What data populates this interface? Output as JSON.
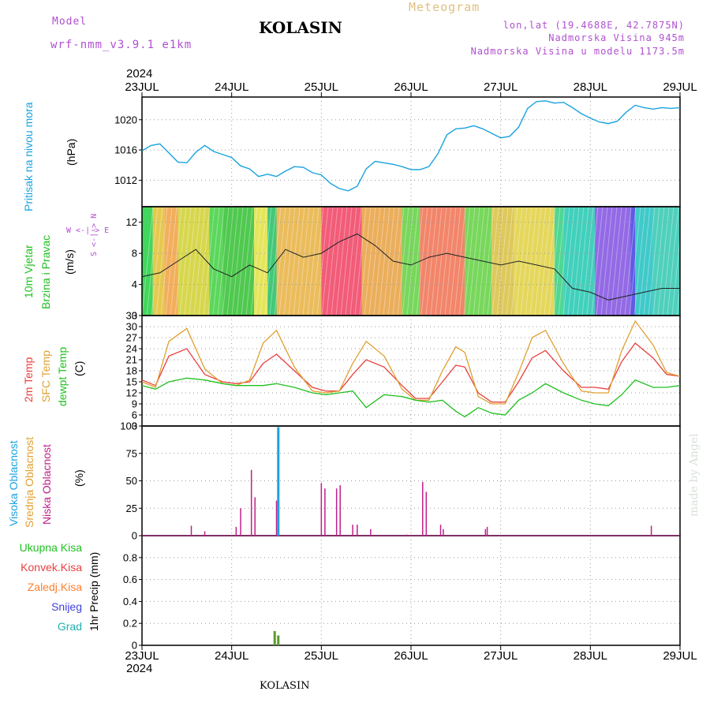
{
  "header": {
    "model_label": "Model",
    "model_name": "wrf-nmm_v3.9.1 e1km",
    "title": "KOLASIN",
    "meteogram": "Meteogram",
    "lonlat": "lon,lat (19.4688E, 42.7875N)",
    "altitude": "Nadmorska Visina 945m",
    "model_altitude": "Nadmorska Visina u modelu 1173.5m",
    "footer": "KOLASIN",
    "watermark": "made by Angel",
    "year_top": "2024",
    "year_bottom": "2024"
  },
  "colors": {
    "pressure": "#1aa3e0",
    "temp2m": "#e84040",
    "sfc_temp": "#e0a030",
    "dewpoint": "#20c020",
    "high_cloud": "#1aa3e0",
    "mid_cloud": "#e0a030",
    "low_cloud": "#c0208a",
    "precip_total": "#20c020",
    "precip_conv": "#e84040",
    "precip_frz": "#ff8030",
    "snow": "#4040e0",
    "hail": "#20b0b0",
    "model": "#b050d0",
    "meteogram": "#e0c080",
    "info": "#b050d0"
  },
  "panel_labels": {
    "pressure": {
      "line1": "Pritisak na nivou mora",
      "unit": "(hPa)"
    },
    "wind": {
      "line1": "10m Vjetar",
      "line2": "Brzina i Pravac",
      "unit": "(m/s)",
      "compass": "W <-|-> E",
      "compass2": "S <-|-> N"
    },
    "temp": {
      "line1": "2m Temp",
      "line2": "SFC Temp",
      "line3": "dewpt Temp",
      "unit": "(C)"
    },
    "cloud": {
      "line1": "Visoka Oblacnost",
      "line2": "Srednja Oblacnost",
      "line3": "Niska Oblacnost",
      "unit": "(%)"
    },
    "precip": {
      "items": [
        "Ukupna Kisa",
        "Konvek.Kisa",
        "Zaledj.Kisa",
        "Snijeg",
        "Grad"
      ],
      "unit": "1hr Precip (mm)"
    }
  },
  "chart_data": [
    {
      "type": "line",
      "name": "pressure",
      "ylabel": "(hPa)",
      "ylim": [
        1008.5,
        1023
      ],
      "yticks": [
        1012,
        1016,
        1020
      ],
      "x_dates": [
        "23JUL",
        "24JUL",
        "25JUL",
        "26JUL",
        "27JUL",
        "28JUL",
        "29JUL"
      ],
      "x": [
        0,
        0.1,
        0.2,
        0.3,
        0.4,
        0.5,
        0.6,
        0.7,
        0.8,
        0.9,
        1.0,
        1.1,
        1.2,
        1.3,
        1.4,
        1.5,
        1.6,
        1.7,
        1.8,
        1.9,
        2.0,
        2.1,
        2.2,
        2.3,
        2.4,
        2.5,
        2.6,
        2.7,
        2.8,
        2.9,
        3.0,
        3.1,
        3.2,
        3.3,
        3.4,
        3.5,
        3.6,
        3.7,
        3.8,
        3.9,
        4.0,
        4.1,
        4.2,
        4.3,
        4.4,
        4.5,
        4.6,
        4.7,
        4.8,
        4.9,
        5.0,
        5.1,
        5.2,
        5.3,
        5.4,
        5.5,
        5.6,
        5.7,
        5.8,
        5.9,
        6.0
      ],
      "values": [
        1015.9,
        1016.6,
        1016.8,
        1015.6,
        1014.4,
        1014.3,
        1015.7,
        1016.6,
        1015.8,
        1015.4,
        1015.0,
        1013.9,
        1013.5,
        1012.5,
        1012.8,
        1012.5,
        1013.2,
        1013.8,
        1013.7,
        1013.0,
        1012.7,
        1011.6,
        1010.9,
        1010.6,
        1011.2,
        1013.5,
        1014.5,
        1014.3,
        1014.1,
        1013.8,
        1013.4,
        1013.4,
        1013.8,
        1015.5,
        1018.0,
        1018.8,
        1018.9,
        1019.2,
        1018.8,
        1018.2,
        1017.6,
        1017.8,
        1019.0,
        1021.5,
        1022.4,
        1022.5,
        1022.2,
        1022.3,
        1021.6,
        1020.8,
        1020.2,
        1019.7,
        1019.5,
        1019.8,
        1021.0,
        1021.9,
        1021.6,
        1021.4,
        1021.6,
        1021.5,
        1021.6
      ]
    },
    {
      "type": "line",
      "name": "wind",
      "ylabel": "(m/s)",
      "ylim": [
        0,
        14
      ],
      "yticks": [
        0,
        4,
        8,
        12
      ],
      "x": [
        0,
        0.2,
        0.4,
        0.6,
        0.8,
        1.0,
        1.2,
        1.4,
        1.6,
        1.8,
        2.0,
        2.2,
        2.4,
        2.6,
        2.8,
        3.0,
        3.2,
        3.4,
        3.6,
        3.8,
        4.0,
        4.2,
        4.4,
        4.6,
        4.8,
        5.0,
        5.2,
        5.4,
        5.6,
        5.8,
        6.0
      ],
      "values": [
        5.0,
        5.5,
        7.0,
        8.5,
        6.0,
        5.0,
        6.5,
        5.5,
        8.5,
        7.5,
        8.0,
        9.5,
        10.5,
        9.0,
        7.0,
        6.5,
        7.5,
        8.0,
        7.5,
        7.0,
        6.5,
        7.0,
        6.5,
        6.0,
        3.5,
        3.0,
        2.0,
        2.5,
        3.0,
        3.5,
        3.5
      ]
    },
    {
      "type": "line",
      "name": "temperature",
      "ylabel": "(C)",
      "ylim": [
        3,
        33
      ],
      "yticks": [
        3,
        6,
        9,
        12,
        15,
        18,
        21,
        24,
        27,
        30,
        33
      ],
      "series": [
        {
          "name": "2m Temp",
          "values": [
            15.5,
            14.0,
            22.0,
            24.0,
            17.0,
            15.0,
            14.5,
            15.0,
            20.0,
            22.5,
            18.0,
            13.5,
            12.5,
            12.5,
            17.0,
            21.0,
            19.0,
            14.0,
            10.5,
            10.5,
            15.0,
            19.5,
            19.0,
            12.0,
            9.5,
            9.5,
            15.0,
            21.5,
            23.5,
            18.0,
            13.5,
            13.5,
            13.0,
            20.5,
            25.5,
            21.5,
            17.0,
            16.5
          ]
        },
        {
          "name": "SFC Temp",
          "values": [
            15.0,
            13.5,
            26.0,
            29.5,
            18.5,
            14.5,
            14.0,
            15.5,
            25.5,
            29.0,
            19.0,
            12.5,
            12.0,
            12.5,
            20.0,
            26.0,
            22.0,
            13.0,
            10.0,
            10.0,
            18.0,
            24.5,
            23.0,
            11.0,
            9.0,
            9.0,
            17.5,
            27.0,
            29.0,
            20.0,
            12.5,
            12.0,
            12.0,
            23.5,
            31.5,
            25.0,
            17.5,
            16.5
          ]
        },
        {
          "name": "dewpt Temp",
          "values": [
            14.0,
            13.0,
            15.0,
            16.0,
            15.5,
            14.5,
            14.0,
            14.0,
            14.0,
            14.5,
            13.5,
            12.0,
            11.5,
            12.0,
            12.5,
            8.0,
            11.5,
            11.0,
            10.0,
            9.5,
            10.0,
            7.0,
            5.5,
            8.0,
            6.5,
            6.0,
            10.0,
            12.0,
            14.5,
            12.0,
            10.0,
            9.0,
            8.5,
            11.5,
            15.5,
            13.5,
            13.5,
            14.0
          ]
        }
      ],
      "x": [
        0,
        0.15,
        0.3,
        0.5,
        0.7,
        0.9,
        1.05,
        1.2,
        1.35,
        1.5,
        1.7,
        1.9,
        2.05,
        2.2,
        2.35,
        2.5,
        2.7,
        2.9,
        3.05,
        3.2,
        3.35,
        3.5,
        3.6,
        3.75,
        3.9,
        4.05,
        4.2,
        4.35,
        4.5,
        4.7,
        4.9,
        5.05,
        5.2,
        5.35,
        5.5,
        5.7,
        5.85,
        6.0
      ]
    },
    {
      "type": "bar",
      "name": "cloud cover",
      "ylabel": "(%)",
      "ylim": [
        0,
        100
      ],
      "yticks": [
        0,
        25,
        50,
        75,
        100
      ],
      "series": [
        {
          "name": "Niska Oblacnost",
          "x": [
            0.55,
            0.7,
            1.05,
            1.1,
            1.22,
            1.26,
            1.5,
            2.0,
            2.04,
            2.17,
            2.21,
            2.35,
            2.4,
            2.55,
            2.95,
            3.13,
            3.17,
            3.33,
            3.36,
            3.83,
            3.85,
            5.68
          ],
          "values": [
            9,
            4,
            8,
            25,
            60,
            35,
            32,
            48,
            43,
            43,
            46,
            10,
            10,
            6,
            1,
            49,
            40,
            10,
            6,
            6,
            8,
            9
          ]
        },
        {
          "name": "Visoka Oblacnost",
          "x": [
            1.52
          ],
          "values": [
            99
          ]
        }
      ]
    },
    {
      "type": "bar",
      "name": "precipitation",
      "ylabel": "1hr Precip (mm)",
      "ylim": [
        0,
        1.0
      ],
      "yticks": [
        0,
        0.2,
        0.4,
        0.6,
        0.8
      ],
      "series": [
        {
          "name": "Ukupna Kisa",
          "x": [
            1.48,
            1.52
          ],
          "values": [
            0.13,
            0.09
          ]
        }
      ]
    }
  ]
}
